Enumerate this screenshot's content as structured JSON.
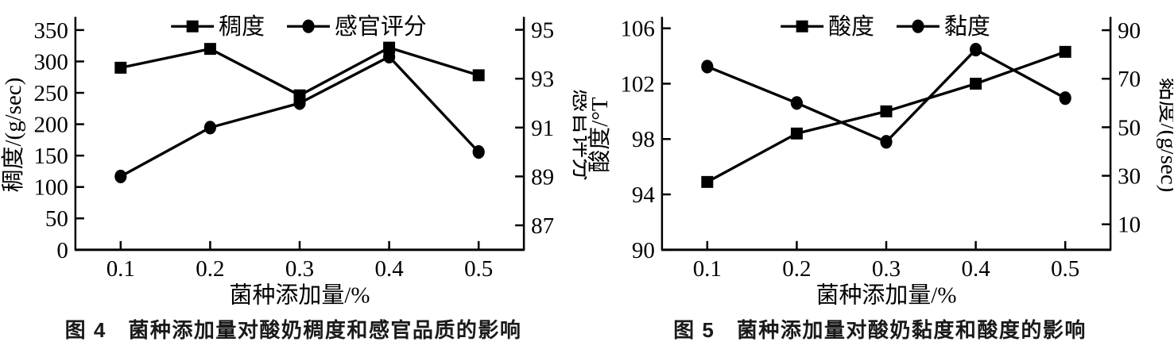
{
  "chart_data": [
    {
      "type": "line",
      "caption": "图 4　菌种添加量对酸奶稠度和感官品质的影响",
      "xlabel": "菌种添加量/%",
      "x": [
        0.1,
        0.2,
        0.3,
        0.4,
        0.5
      ],
      "x_tick_labels": [
        "0.1",
        "0.2",
        "0.3",
        "0.4",
        "0.5"
      ],
      "left_axis": {
        "label": "稠度/(g/sec)",
        "ticks": [
          0,
          50,
          100,
          150,
          200,
          250,
          300,
          350
        ],
        "min": 0,
        "max": 366
      },
      "right_axis": {
        "label": "感官评分",
        "ticks": [
          87,
          89,
          91,
          93,
          95
        ],
        "min": 86,
        "max": 95.4
      },
      "grid": false,
      "legend_position": "top",
      "line_color": "#000000",
      "series": [
        {
          "name": "稠度",
          "axis": "left",
          "marker": "square",
          "values": [
            290,
            320,
            246,
            322,
            278
          ]
        },
        {
          "name": "感官评分",
          "axis": "right",
          "marker": "circle",
          "values": [
            89,
            91,
            92,
            93.9,
            90
          ]
        }
      ]
    },
    {
      "type": "line",
      "caption": "图 5　菌种添加量对酸奶黏度和酸度的影响",
      "xlabel": "菌种添加量/%",
      "x": [
        0.1,
        0.2,
        0.3,
        0.4,
        0.5
      ],
      "x_tick_labels": [
        "0.1",
        "0.2",
        "0.3",
        "0.4",
        "0.5"
      ],
      "left_axis": {
        "label": "酸度/°T",
        "ticks": [
          90,
          94,
          98,
          102,
          106
        ],
        "min": 90,
        "max": 106.6
      },
      "right_axis": {
        "label": "黏度/(g/sec)",
        "ticks": [
          10,
          30,
          50,
          70,
          90
        ],
        "min": -0.5,
        "max": 94.2
      },
      "grid": false,
      "legend_position": "top",
      "line_color": "#000000",
      "series": [
        {
          "name": "酸度",
          "axis": "left",
          "marker": "square",
          "values": [
            94.9,
            98.4,
            100,
            102,
            104.3
          ]
        },
        {
          "name": "黏度",
          "axis": "right",
          "marker": "circle",
          "values": [
            75,
            60,
            44,
            82,
            62
          ]
        }
      ]
    }
  ]
}
